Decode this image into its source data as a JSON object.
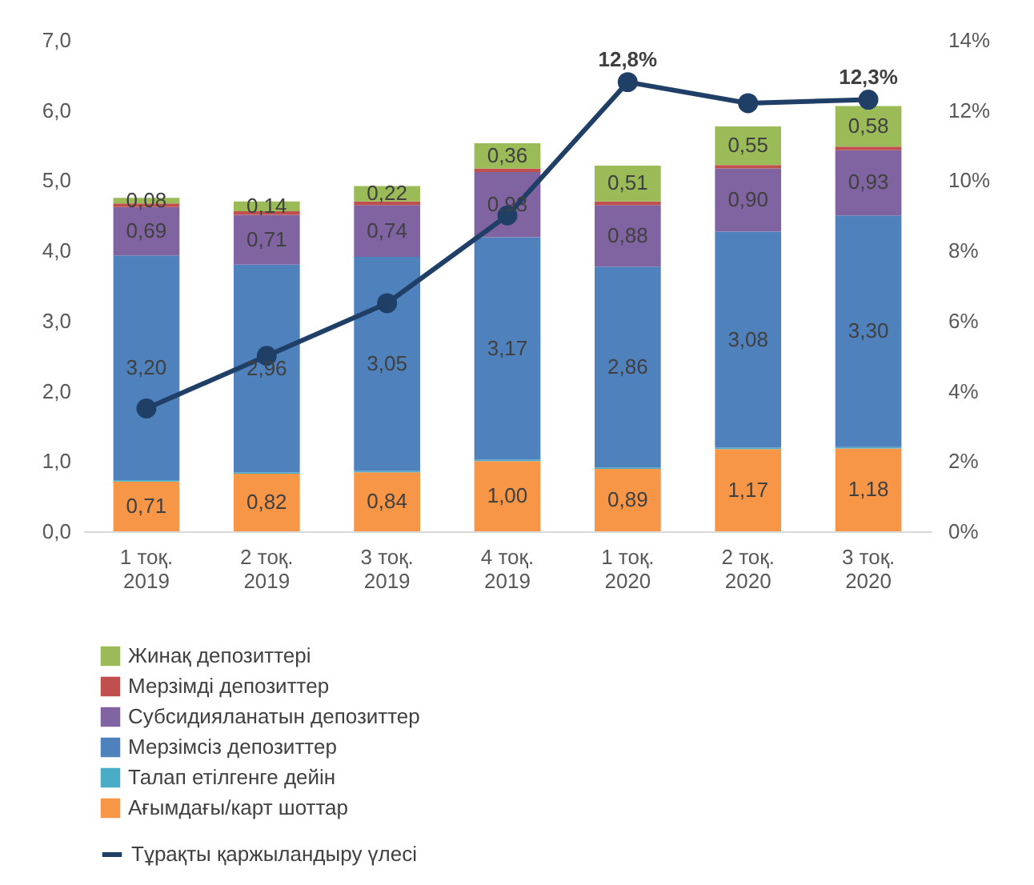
{
  "chart_data": {
    "type": "bar",
    "stacked": true,
    "categories": [
      "1 тоқ.\n2019",
      "2 тоқ.\n2019",
      "3 тоқ.\n2019",
      "4 тоқ.\n2019",
      "1 тоқ.\n2020",
      "2 тоқ.\n2020",
      "3 тоқ.\n2020"
    ],
    "series": [
      {
        "name": "Ағымдағы/карт шоттар",
        "color": "#f79646",
        "values": [
          0.71,
          0.82,
          0.84,
          1.0,
          0.89,
          1.17,
          1.18
        ],
        "value_labels": [
          "0,71",
          "0,82",
          "0,84",
          "1,00",
          "0,89",
          "1,17",
          "1,18"
        ]
      },
      {
        "name": "Талап етілгенге дейін",
        "color": "#4bacc6",
        "values": [
          0.02,
          0.02,
          0.02,
          0.02,
          0.02,
          0.02,
          0.02
        ]
      },
      {
        "name": "Мерзімсіз депозиттер",
        "color": "#4f81bd",
        "values": [
          3.2,
          2.96,
          3.05,
          3.17,
          2.86,
          3.08,
          3.3
        ],
        "value_labels": [
          "3,20",
          "2,96",
          "3,05",
          "3,17",
          "2,86",
          "3,08",
          "3,30"
        ]
      },
      {
        "name": "Субсидияланатын депозиттер",
        "color": "#8064a2",
        "values": [
          0.69,
          0.71,
          0.74,
          0.93,
          0.88,
          0.9,
          0.93
        ],
        "value_labels": [
          "0,69",
          "0,71",
          "0,74",
          "0,93",
          "0,88",
          "0,90",
          "0,93"
        ]
      },
      {
        "name": "Мерзімді депозиттер",
        "color": "#c0504d",
        "values": [
          0.05,
          0.05,
          0.05,
          0.05,
          0.05,
          0.05,
          0.05
        ]
      },
      {
        "name": "Жинақ депозиттері",
        "color": "#9bbb59",
        "values": [
          0.08,
          0.14,
          0.22,
          0.36,
          0.51,
          0.55,
          0.58
        ],
        "value_labels": [
          "0,08",
          "0,14",
          "0,22",
          "0,36",
          "0,51",
          "0,55",
          "0,58"
        ]
      },
      {
        "name": "Тұрақты қаржыландыру үлесі",
        "type": "line",
        "axis": "y2",
        "color": "#1f3f66",
        "values": [
          3.5,
          5.0,
          6.5,
          9.0,
          12.8,
          12.2,
          12.3
        ],
        "value_labels": [
          null,
          null,
          null,
          null,
          "12,8%",
          null,
          "12,3%"
        ]
      }
    ],
    "ylim": [
      0,
      7
    ],
    "yticks": [
      {
        "value": 0,
        "label": "0,0"
      },
      {
        "value": 1,
        "label": "1,0"
      },
      {
        "value": 2,
        "label": "2,0"
      },
      {
        "value": 3,
        "label": "3,0"
      },
      {
        "value": 4,
        "label": "4,0"
      },
      {
        "value": 5,
        "label": "5,0"
      },
      {
        "value": 6,
        "label": "6,0"
      },
      {
        "value": 7,
        "label": "7,0"
      }
    ],
    "y2lim": [
      0,
      14
    ],
    "y2ticks": [
      {
        "value": 0,
        "label": "0%"
      },
      {
        "value": 2,
        "label": "2%"
      },
      {
        "value": 4,
        "label": "4%"
      },
      {
        "value": 6,
        "label": "6%"
      },
      {
        "value": 8,
        "label": "8%"
      },
      {
        "value": 10,
        "label": "10%"
      },
      {
        "value": 12,
        "label": "12%"
      },
      {
        "value": 14,
        "label": "14%"
      }
    ],
    "grid": false,
    "legend": "bottom left",
    "marker": "circle",
    "line_style": "solid"
  }
}
